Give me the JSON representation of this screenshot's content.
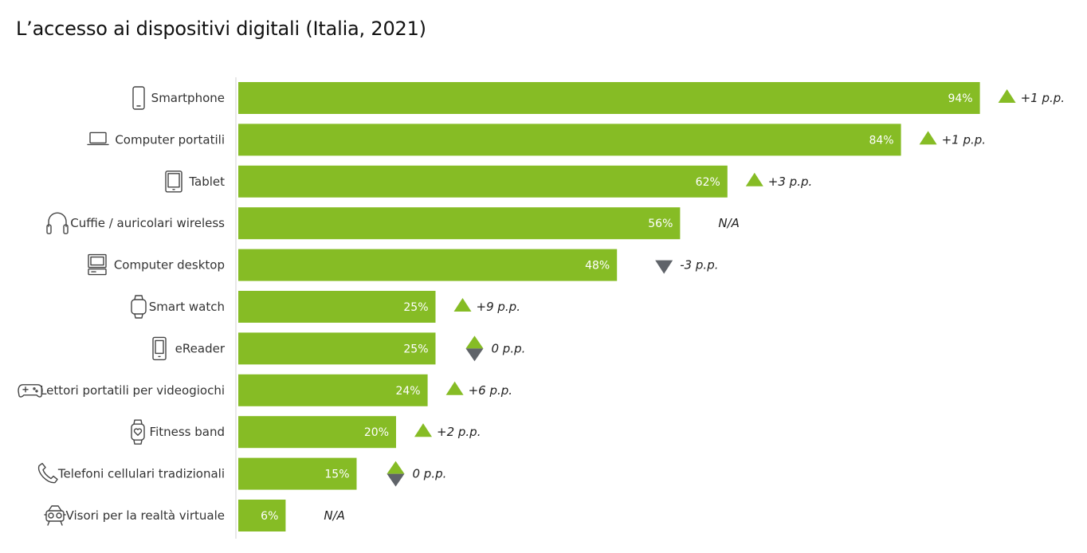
{
  "title": "L’accesso ai dispositivi digitali (Italia, 2021)",
  "colors": {
    "bar": "#86bc25",
    "up": "#86bc25",
    "down": "#5f6369",
    "axis": "#d0d0d0"
  },
  "chart_data": {
    "type": "bar",
    "orientation": "horizontal",
    "title": "L’accesso ai dispositivi digitali (Italia, 2021)",
    "xlim": [
      0,
      100
    ],
    "unit": "%",
    "grid": false,
    "categories": [
      "Smartphone",
      "Computer portatili",
      "Tablet",
      "Cuffie / auricolari wireless",
      "Computer desktop",
      "Smart watch",
      "eReader",
      "Lettori portatili per videogiochi",
      "Fitness band",
      "Telefoni cellulari tradizionali",
      "Visori per la realtà virtuale"
    ],
    "values": [
      94,
      84,
      62,
      56,
      48,
      25,
      25,
      24,
      20,
      15,
      6
    ],
    "value_labels": [
      "94%",
      "84%",
      "62%",
      "56%",
      "48%",
      "25%",
      "25%",
      "24%",
      "20%",
      "15%",
      "6%"
    ],
    "deltas": [
      "+1 p.p.",
      "+1 p.p.",
      "+3 p.p.",
      "N/A",
      "-3 p.p.",
      "+9 p.p.",
      "0 p.p.",
      "+6 p.p.",
      "+2 p.p.",
      "0 p.p.",
      "N/A"
    ],
    "trend": [
      "up",
      "up",
      "up",
      "none",
      "down",
      "up",
      "flat",
      "up",
      "up",
      "flat",
      "none"
    ],
    "icons": [
      "smartphone-icon",
      "laptop-icon",
      "tablet-icon",
      "headphones-icon",
      "desktop-icon",
      "smartwatch-icon",
      "ereader-icon",
      "gamepad-icon",
      "fitness-band-icon",
      "phone-icon",
      "vr-headset-icon"
    ]
  }
}
